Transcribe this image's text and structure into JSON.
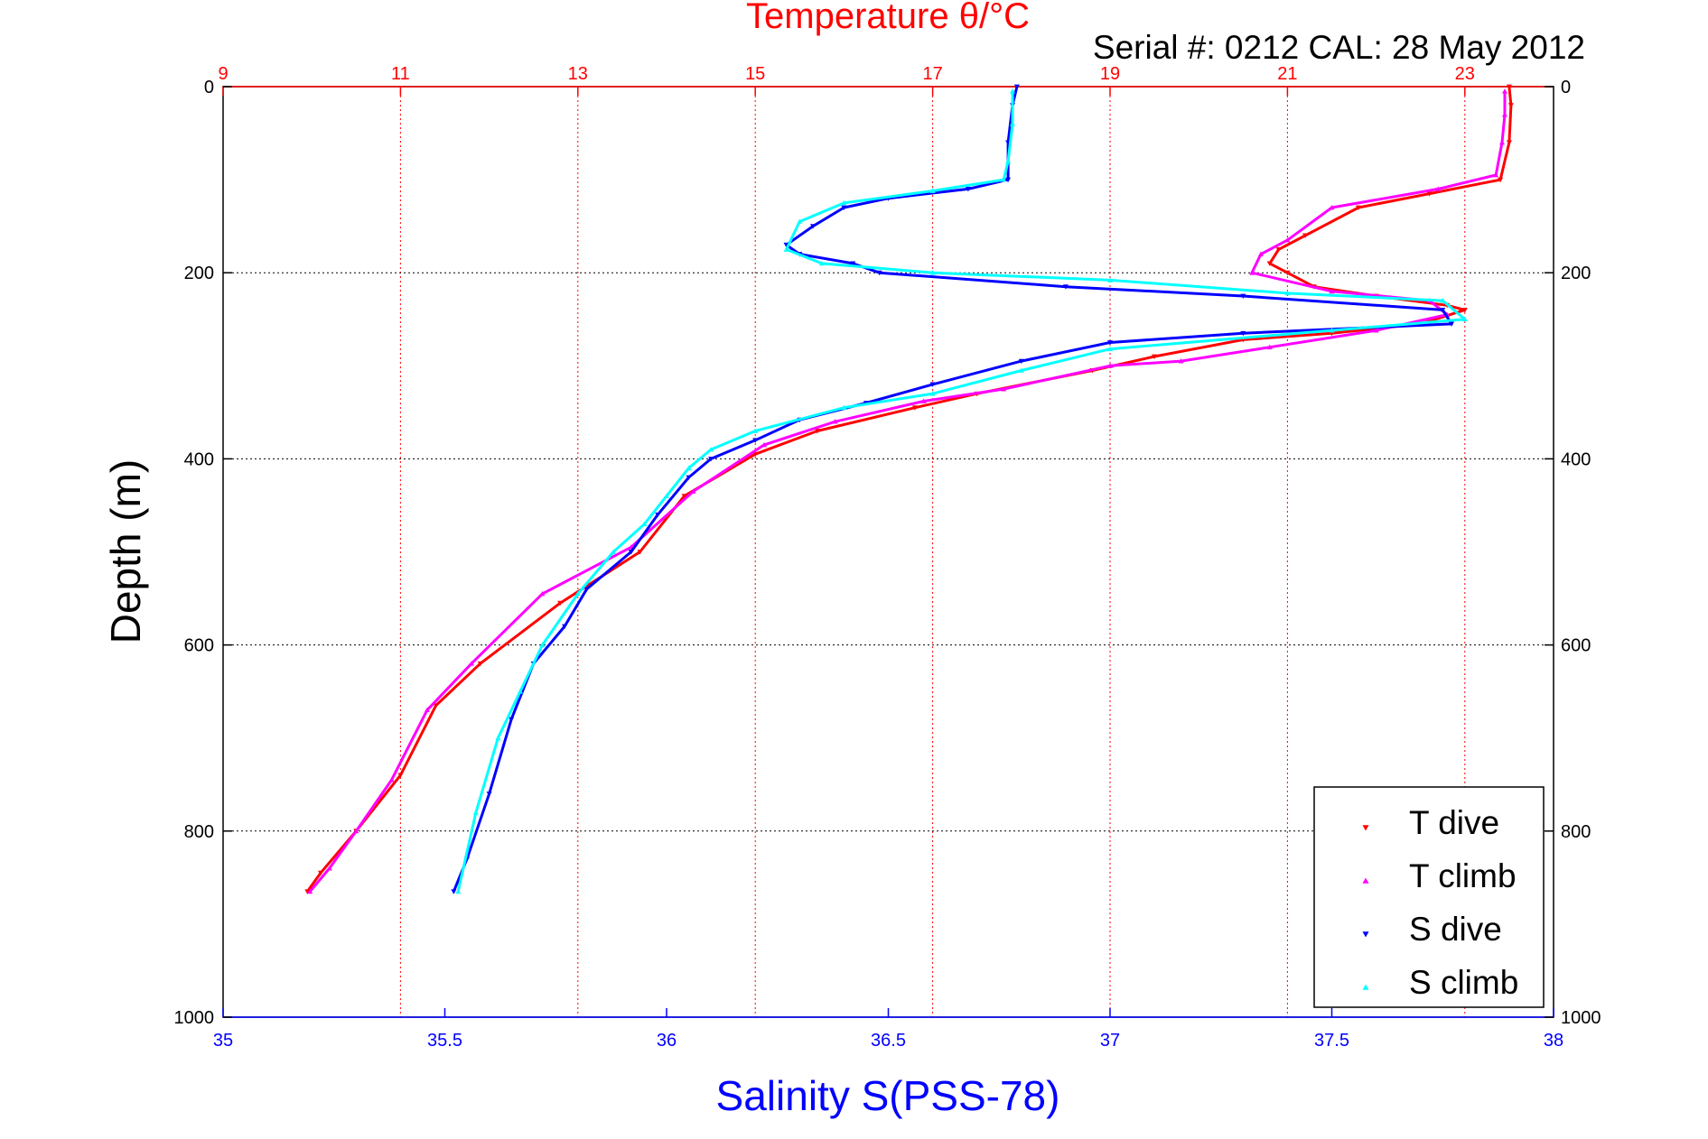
{
  "chart_data": {
    "type": "scatter",
    "title": "Temperature θ/°C",
    "subtitle": "Serial #: 0212  CAL: 28 May 2012",
    "xlabel": "Salinity S(PSS-78)",
    "ylabel": "Depth (m)",
    "xlim": [
      35,
      38
    ],
    "x2lim": [
      9,
      24
    ],
    "ylim": [
      0,
      1000
    ],
    "y_reversed": true,
    "grid": true,
    "legend_position": "bottom-right",
    "x_ticks": [
      "35",
      "35.5",
      "36",
      "36.5",
      "37",
      "37.5",
      "38"
    ],
    "x2_ticks": [
      "9",
      "11",
      "13",
      "15",
      "17",
      "19",
      "21",
      "23"
    ],
    "y_ticks": [
      "0",
      "200",
      "400",
      "600",
      "800",
      "1000"
    ],
    "colors": {
      "t_dive": "#ff0000",
      "t_climb": "#ff00ff",
      "s_dive": "#0000ff",
      "s_climb": "#00ffff",
      "grid_temperature": "#ff0000",
      "grid_depth": "#000000"
    },
    "series": [
      {
        "name": "T dive",
        "axis": "temperature",
        "marker": "triangle-down",
        "points": [
          [
            23.5,
            0
          ],
          [
            23.52,
            20
          ],
          [
            23.5,
            60
          ],
          [
            23.4,
            100
          ],
          [
            22.6,
            115
          ],
          [
            21.8,
            130
          ],
          [
            21.2,
            160
          ],
          [
            20.9,
            175
          ],
          [
            20.8,
            190
          ],
          [
            21.0,
            200
          ],
          [
            21.3,
            215
          ],
          [
            22.0,
            225
          ],
          [
            22.8,
            235
          ],
          [
            23.0,
            240
          ],
          [
            22.5,
            255
          ],
          [
            21.5,
            265
          ],
          [
            20.5,
            272
          ],
          [
            19.5,
            290
          ],
          [
            18.8,
            305
          ],
          [
            17.5,
            330
          ],
          [
            16.8,
            345
          ],
          [
            15.7,
            370
          ],
          [
            15.0,
            395
          ],
          [
            14.2,
            440
          ],
          [
            13.7,
            500
          ],
          [
            12.8,
            555
          ],
          [
            11.9,
            620
          ],
          [
            11.4,
            665
          ],
          [
            11.0,
            740
          ],
          [
            10.5,
            800
          ],
          [
            10.1,
            845
          ],
          [
            9.95,
            865
          ]
        ]
      },
      {
        "name": "T climb",
        "axis": "temperature",
        "marker": "triangle-up",
        "points": [
          [
            23.45,
            5
          ],
          [
            23.45,
            30
          ],
          [
            23.42,
            60
          ],
          [
            23.35,
            95
          ],
          [
            22.7,
            110
          ],
          [
            21.5,
            130
          ],
          [
            21.0,
            165
          ],
          [
            20.7,
            180
          ],
          [
            20.6,
            200
          ],
          [
            21.5,
            220
          ],
          [
            22.6,
            230
          ],
          [
            22.8,
            245
          ],
          [
            22.0,
            262
          ],
          [
            20.8,
            280
          ],
          [
            19.8,
            295
          ],
          [
            19.0,
            300
          ],
          [
            17.8,
            325
          ],
          [
            16.9,
            338
          ],
          [
            15.9,
            360
          ],
          [
            15.1,
            385
          ],
          [
            14.3,
            435
          ],
          [
            13.6,
            495
          ],
          [
            12.6,
            545
          ],
          [
            11.8,
            620
          ],
          [
            11.3,
            670
          ],
          [
            10.9,
            745
          ],
          [
            10.5,
            800
          ],
          [
            10.2,
            840
          ],
          [
            9.98,
            865
          ]
        ]
      },
      {
        "name": "S dive",
        "axis": "salinity",
        "marker": "triangle-down",
        "points": [
          [
            36.79,
            0
          ],
          [
            36.78,
            20
          ],
          [
            36.77,
            60
          ],
          [
            36.77,
            100
          ],
          [
            36.68,
            110
          ],
          [
            36.5,
            120
          ],
          [
            36.4,
            130
          ],
          [
            36.33,
            150
          ],
          [
            36.27,
            170
          ],
          [
            36.3,
            180
          ],
          [
            36.42,
            190
          ],
          [
            36.48,
            200
          ],
          [
            36.9,
            215
          ],
          [
            37.3,
            225
          ],
          [
            37.75,
            240
          ],
          [
            37.77,
            255
          ],
          [
            37.3,
            265
          ],
          [
            37.0,
            275
          ],
          [
            36.8,
            295
          ],
          [
            36.6,
            320
          ],
          [
            36.45,
            340
          ],
          [
            36.3,
            358
          ],
          [
            36.2,
            380
          ],
          [
            36.1,
            400
          ],
          [
            36.05,
            420
          ],
          [
            35.98,
            460
          ],
          [
            35.92,
            500
          ],
          [
            35.82,
            540
          ],
          [
            35.77,
            580
          ],
          [
            35.7,
            620
          ],
          [
            35.65,
            680
          ],
          [
            35.6,
            760
          ],
          [
            35.55,
            830
          ],
          [
            35.52,
            865
          ]
        ]
      },
      {
        "name": "S climb",
        "axis": "salinity",
        "marker": "triangle-up",
        "points": [
          [
            36.78,
            5
          ],
          [
            36.78,
            40
          ],
          [
            36.77,
            80
          ],
          [
            36.76,
            100
          ],
          [
            36.6,
            112
          ],
          [
            36.4,
            125
          ],
          [
            36.3,
            145
          ],
          [
            36.27,
            175
          ],
          [
            36.35,
            190
          ],
          [
            36.6,
            200
          ],
          [
            37.0,
            208
          ],
          [
            37.4,
            222
          ],
          [
            37.75,
            230
          ],
          [
            37.8,
            250
          ],
          [
            37.5,
            262
          ],
          [
            37.0,
            282
          ],
          [
            36.8,
            305
          ],
          [
            36.6,
            330
          ],
          [
            36.4,
            345
          ],
          [
            36.2,
            370
          ],
          [
            36.1,
            390
          ],
          [
            36.05,
            410
          ],
          [
            36.0,
            440
          ],
          [
            35.95,
            470
          ],
          [
            35.88,
            500
          ],
          [
            35.8,
            545
          ],
          [
            35.72,
            600
          ],
          [
            35.67,
            650
          ],
          [
            35.62,
            700
          ],
          [
            35.57,
            780
          ],
          [
            35.53,
            865
          ]
        ]
      }
    ]
  },
  "legend": {
    "items": [
      {
        "label": "T dive",
        "color": "#ff0000",
        "marker": "triangle-down"
      },
      {
        "label": "T climb",
        "color": "#ff00ff",
        "marker": "triangle-up"
      },
      {
        "label": "S dive",
        "color": "#0000ff",
        "marker": "triangle-down"
      },
      {
        "label": "S climb",
        "color": "#00ffff",
        "marker": "triangle-up"
      }
    ]
  }
}
